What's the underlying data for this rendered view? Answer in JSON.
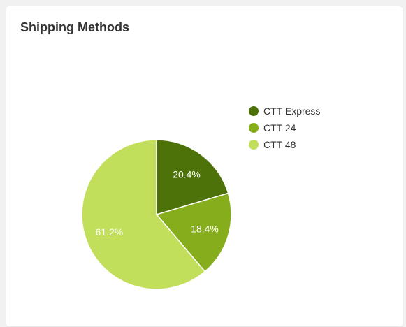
{
  "card": {
    "title": "Shipping Methods"
  },
  "chart_data": {
    "type": "pie",
    "categories": [
      "CTT Express",
      "CTT 24",
      "CTT 48"
    ],
    "values": [
      20.4,
      18.4,
      61.2
    ],
    "value_labels": [
      "20.4%",
      "18.4%",
      "61.2%"
    ],
    "colors": [
      "#4c7209",
      "#86ad1c",
      "#c1df5a"
    ],
    "legend_position": "top-right"
  }
}
